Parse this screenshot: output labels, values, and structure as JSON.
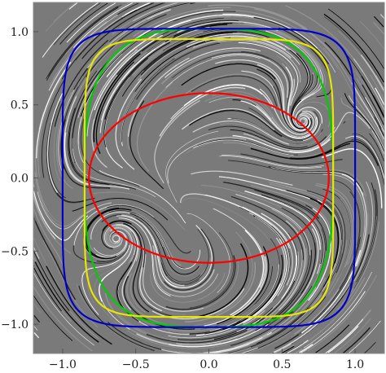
{
  "chart_data": {
    "type": "streamplot",
    "title": "",
    "xlabel": "",
    "ylabel": "",
    "xlim": [
      -1.2,
      1.2
    ],
    "ylim": [
      -1.2,
      1.2
    ],
    "grid": false,
    "x_ticks": [
      {
        "value": -1.0,
        "label": "−1.0"
      },
      {
        "value": -0.5,
        "label": "−0.5"
      },
      {
        "value": 0.0,
        "label": "0.0"
      },
      {
        "value": 0.5,
        "label": "0.5"
      },
      {
        "value": 1.0,
        "label": "1.0"
      }
    ],
    "y_ticks": [
      {
        "value": 1.0,
        "label": "1.0"
      },
      {
        "value": 0.5,
        "label": "0.5"
      },
      {
        "value": 0.0,
        "label": "0.0"
      },
      {
        "value": -0.5,
        "label": "−0.5"
      },
      {
        "value": -1.0,
        "label": "−1.0"
      }
    ],
    "background": {
      "description_units": "streamlines of a planar vector field",
      "foci": [
        [
          0.62,
          0.35
        ],
        [
          -0.62,
          -0.4
        ]
      ],
      "colors": [
        "#000000",
        "#ffffff",
        "#9a9a9a"
      ]
    },
    "curves": [
      {
        "color": "#ff0000",
        "shape": "ellipse",
        "center": [
          0,
          0
        ],
        "rx": 0.82,
        "ry": 0.58
      },
      {
        "color": "#00cc00",
        "shape": "superellipse",
        "center": [
          0,
          0
        ],
        "rx": 0.85,
        "ry": 1.02,
        "exponent": 3
      },
      {
        "color": "#e6e600",
        "shape": "superellipse",
        "center": [
          0,
          0
        ],
        "rx": 0.85,
        "ry": 0.95,
        "exponent": 6
      },
      {
        "color": "#0000cc",
        "shape": "superellipse",
        "center": [
          0,
          0
        ],
        "rx": 1.0,
        "ry": 1.02,
        "exponent": 6
      }
    ]
  }
}
